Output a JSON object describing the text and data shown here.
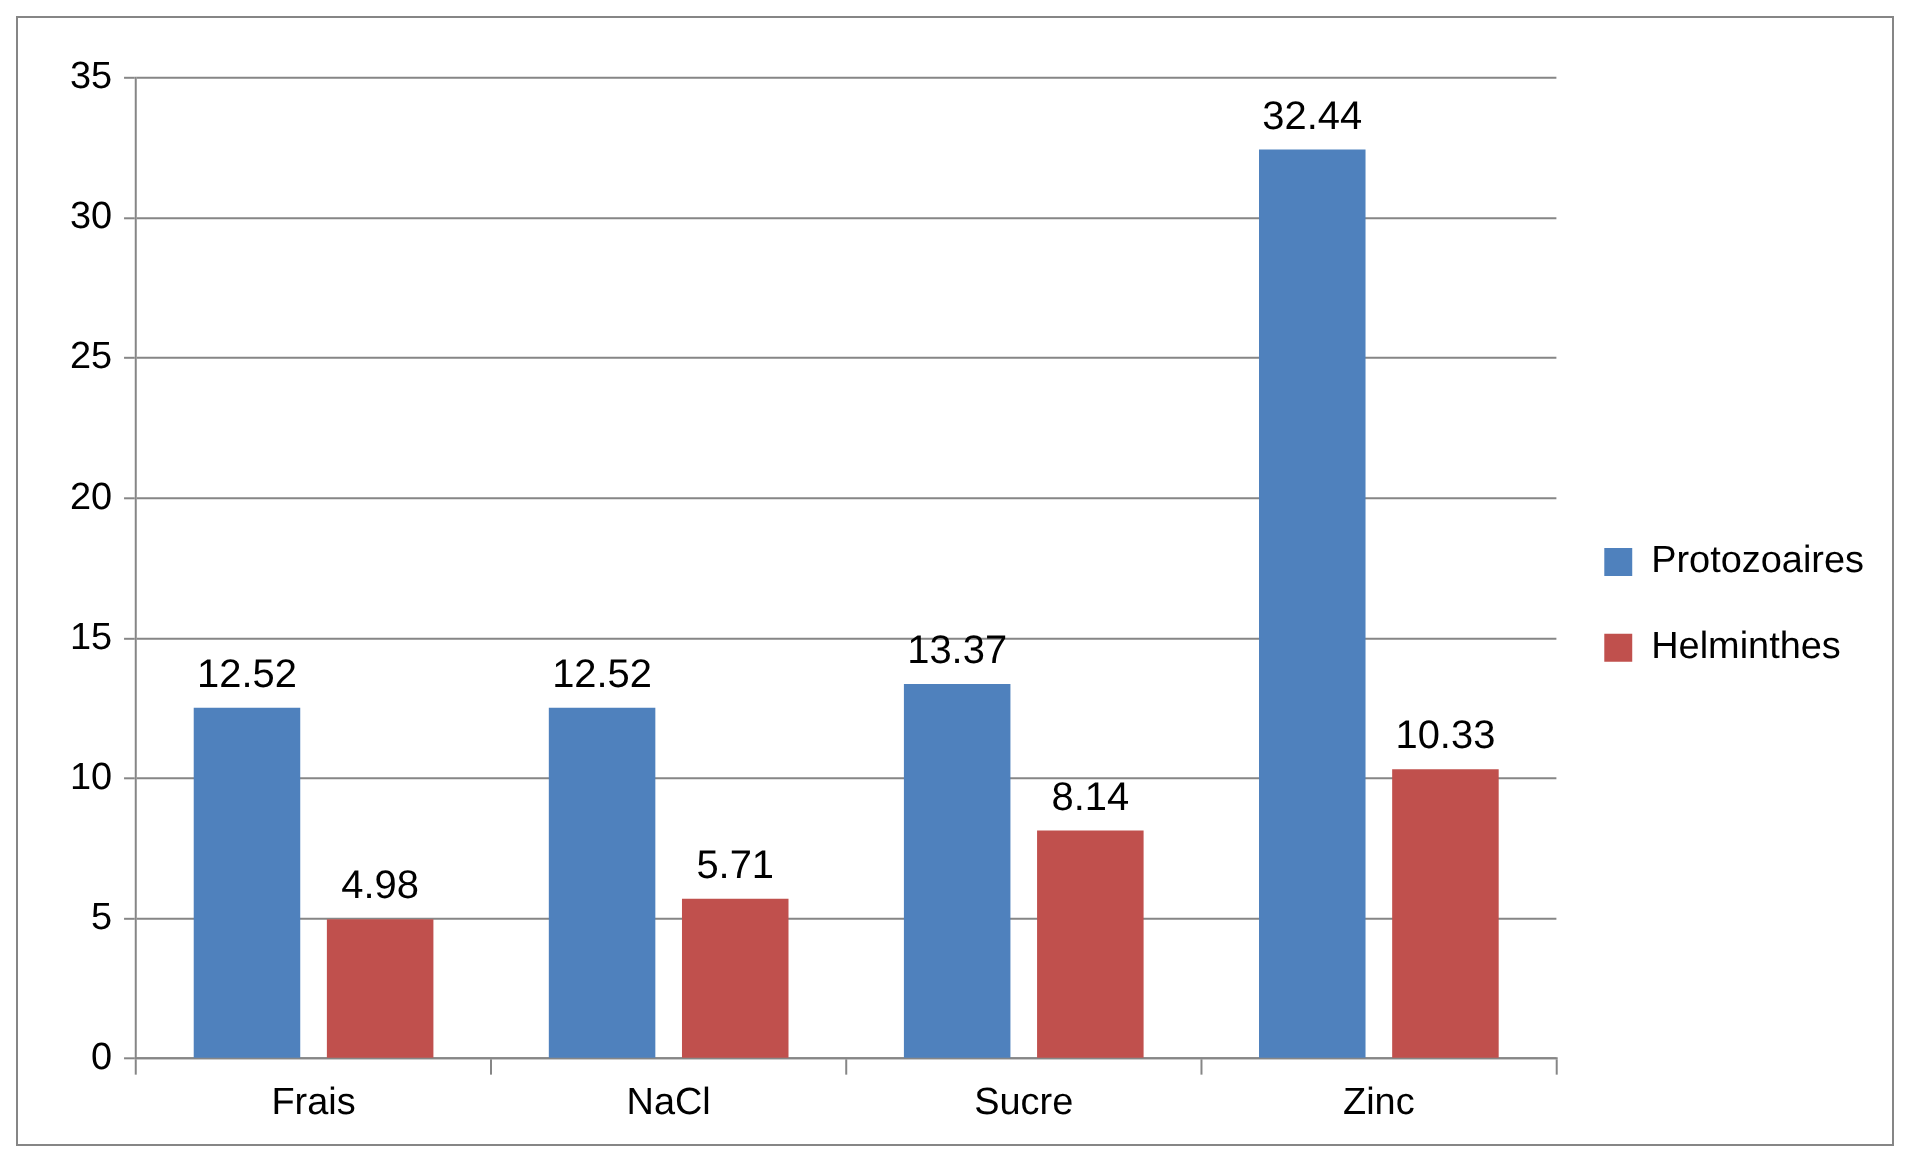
{
  "chart_data": {
    "type": "bar",
    "categories": [
      "Frais",
      "NaCl",
      "Sucre",
      "Zinc"
    ],
    "series": [
      {
        "name": "Protozoaires",
        "color": "#4f81bd",
        "values": [
          12.52,
          12.52,
          13.37,
          32.44
        ]
      },
      {
        "name": "Helminthes",
        "color": "#c0504d",
        "values": [
          4.98,
          5.71,
          8.14,
          10.33
        ]
      }
    ],
    "ylim": [
      0,
      35
    ],
    "yticks": [
      0,
      5,
      10,
      15,
      20,
      25,
      30,
      35
    ],
    "grid": "y",
    "legend": "right",
    "data_labels": true
  }
}
